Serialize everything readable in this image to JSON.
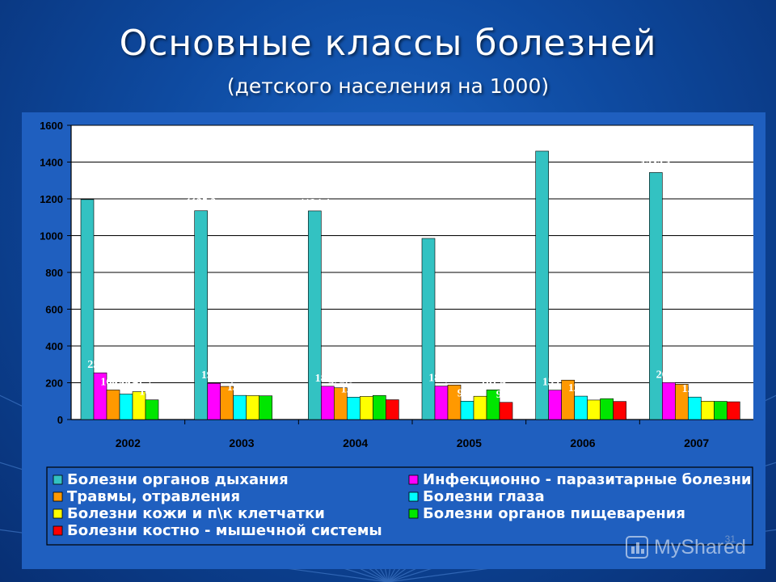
{
  "title": "Основные классы болезней",
  "subtitle": "(детского населения на 1000)",
  "page_number": "31",
  "watermark": "MyShared",
  "colors": {
    "plot_bg": "#ffffff",
    "chart_bg": "#1f5fbf",
    "label_color": "#ffffff",
    "text_dark": "#000000"
  },
  "chart_data": {
    "type": "bar",
    "title": "",
    "xlabel": "",
    "ylabel": "",
    "ylim": [
      0,
      1600
    ],
    "yticks": [
      0,
      200,
      400,
      600,
      800,
      1000,
      1200,
      1400,
      1600
    ],
    "grid": true,
    "legend_position": "bottom",
    "categories": [
      "2002",
      "2003",
      "2004",
      "2005",
      "2006",
      "2007"
    ],
    "series": [
      {
        "name": "Болезни органов дыхания",
        "color": "#33c2c2",
        "values": [
          1196.3,
          1135.2,
          1134.4,
          984.8,
          1459.5,
          1343.1
        ],
        "labels": [
          "1196,3",
          "1135,2",
          "1134,4",
          "984,8",
          "1459,5",
          "1343,1"
        ]
      },
      {
        "name": "Инфекционно - паразитарные болезни",
        "color": "#ff00ff",
        "values": [
          253.9,
          197.0,
          180.9,
          181.9,
          159.7,
          201.0
        ],
        "labels": [
          "253,9",
          "197,0",
          "180,9",
          "181,9",
          "159,7",
          "201,0"
        ]
      },
      {
        "name": "Травмы, отравления",
        "color": "#ff9900",
        "values": [
          160.7,
          180.0,
          172.6,
          187.8,
          214.3,
          191.7
        ],
        "labels": [
          "160,7",
          "180,0",
          "172,6",
          "187,8",
          "214,3",
          "191,7"
        ]
      },
      {
        "name": "Болезни глаза",
        "color": "#00ffff",
        "values": [
          138.5,
          131.1,
          121.5,
          99.8,
          127.1,
          122.1
        ],
        "labels": [
          "138,5",
          "131,1",
          "121,5",
          "99,8",
          "127,1",
          "122,1"
        ]
      },
      {
        "name": "Болезни кожи и п\\к клетчатки",
        "color": "#ffff00",
        "values": [
          151.7,
          130.0,
          125.5,
          126.5,
          105.9,
          99.5
        ],
        "labels": [
          "151,7",
          "130,0",
          "125,5",
          "126,5",
          "105,9",
          "99,5"
        ]
      },
      {
        "name": "Болезни органов пищеварения",
        "color": "#00e600",
        "values": [
          106.8,
          129.0,
          130.9,
          161.4,
          113.4,
          98.8
        ],
        "labels": [
          "106,8",
          "129,0",
          "130,9",
          "161,4",
          "113,4",
          "98,8"
        ]
      },
      {
        "name": "Болезни костно - мышечной системы",
        "color": "#ff0000",
        "values": [
          null,
          null,
          107.6,
          93.4,
          98.2,
          96.5
        ],
        "labels": [
          "",
          "",
          "107,6",
          "93,4",
          "98,2",
          "96,5"
        ]
      }
    ]
  }
}
